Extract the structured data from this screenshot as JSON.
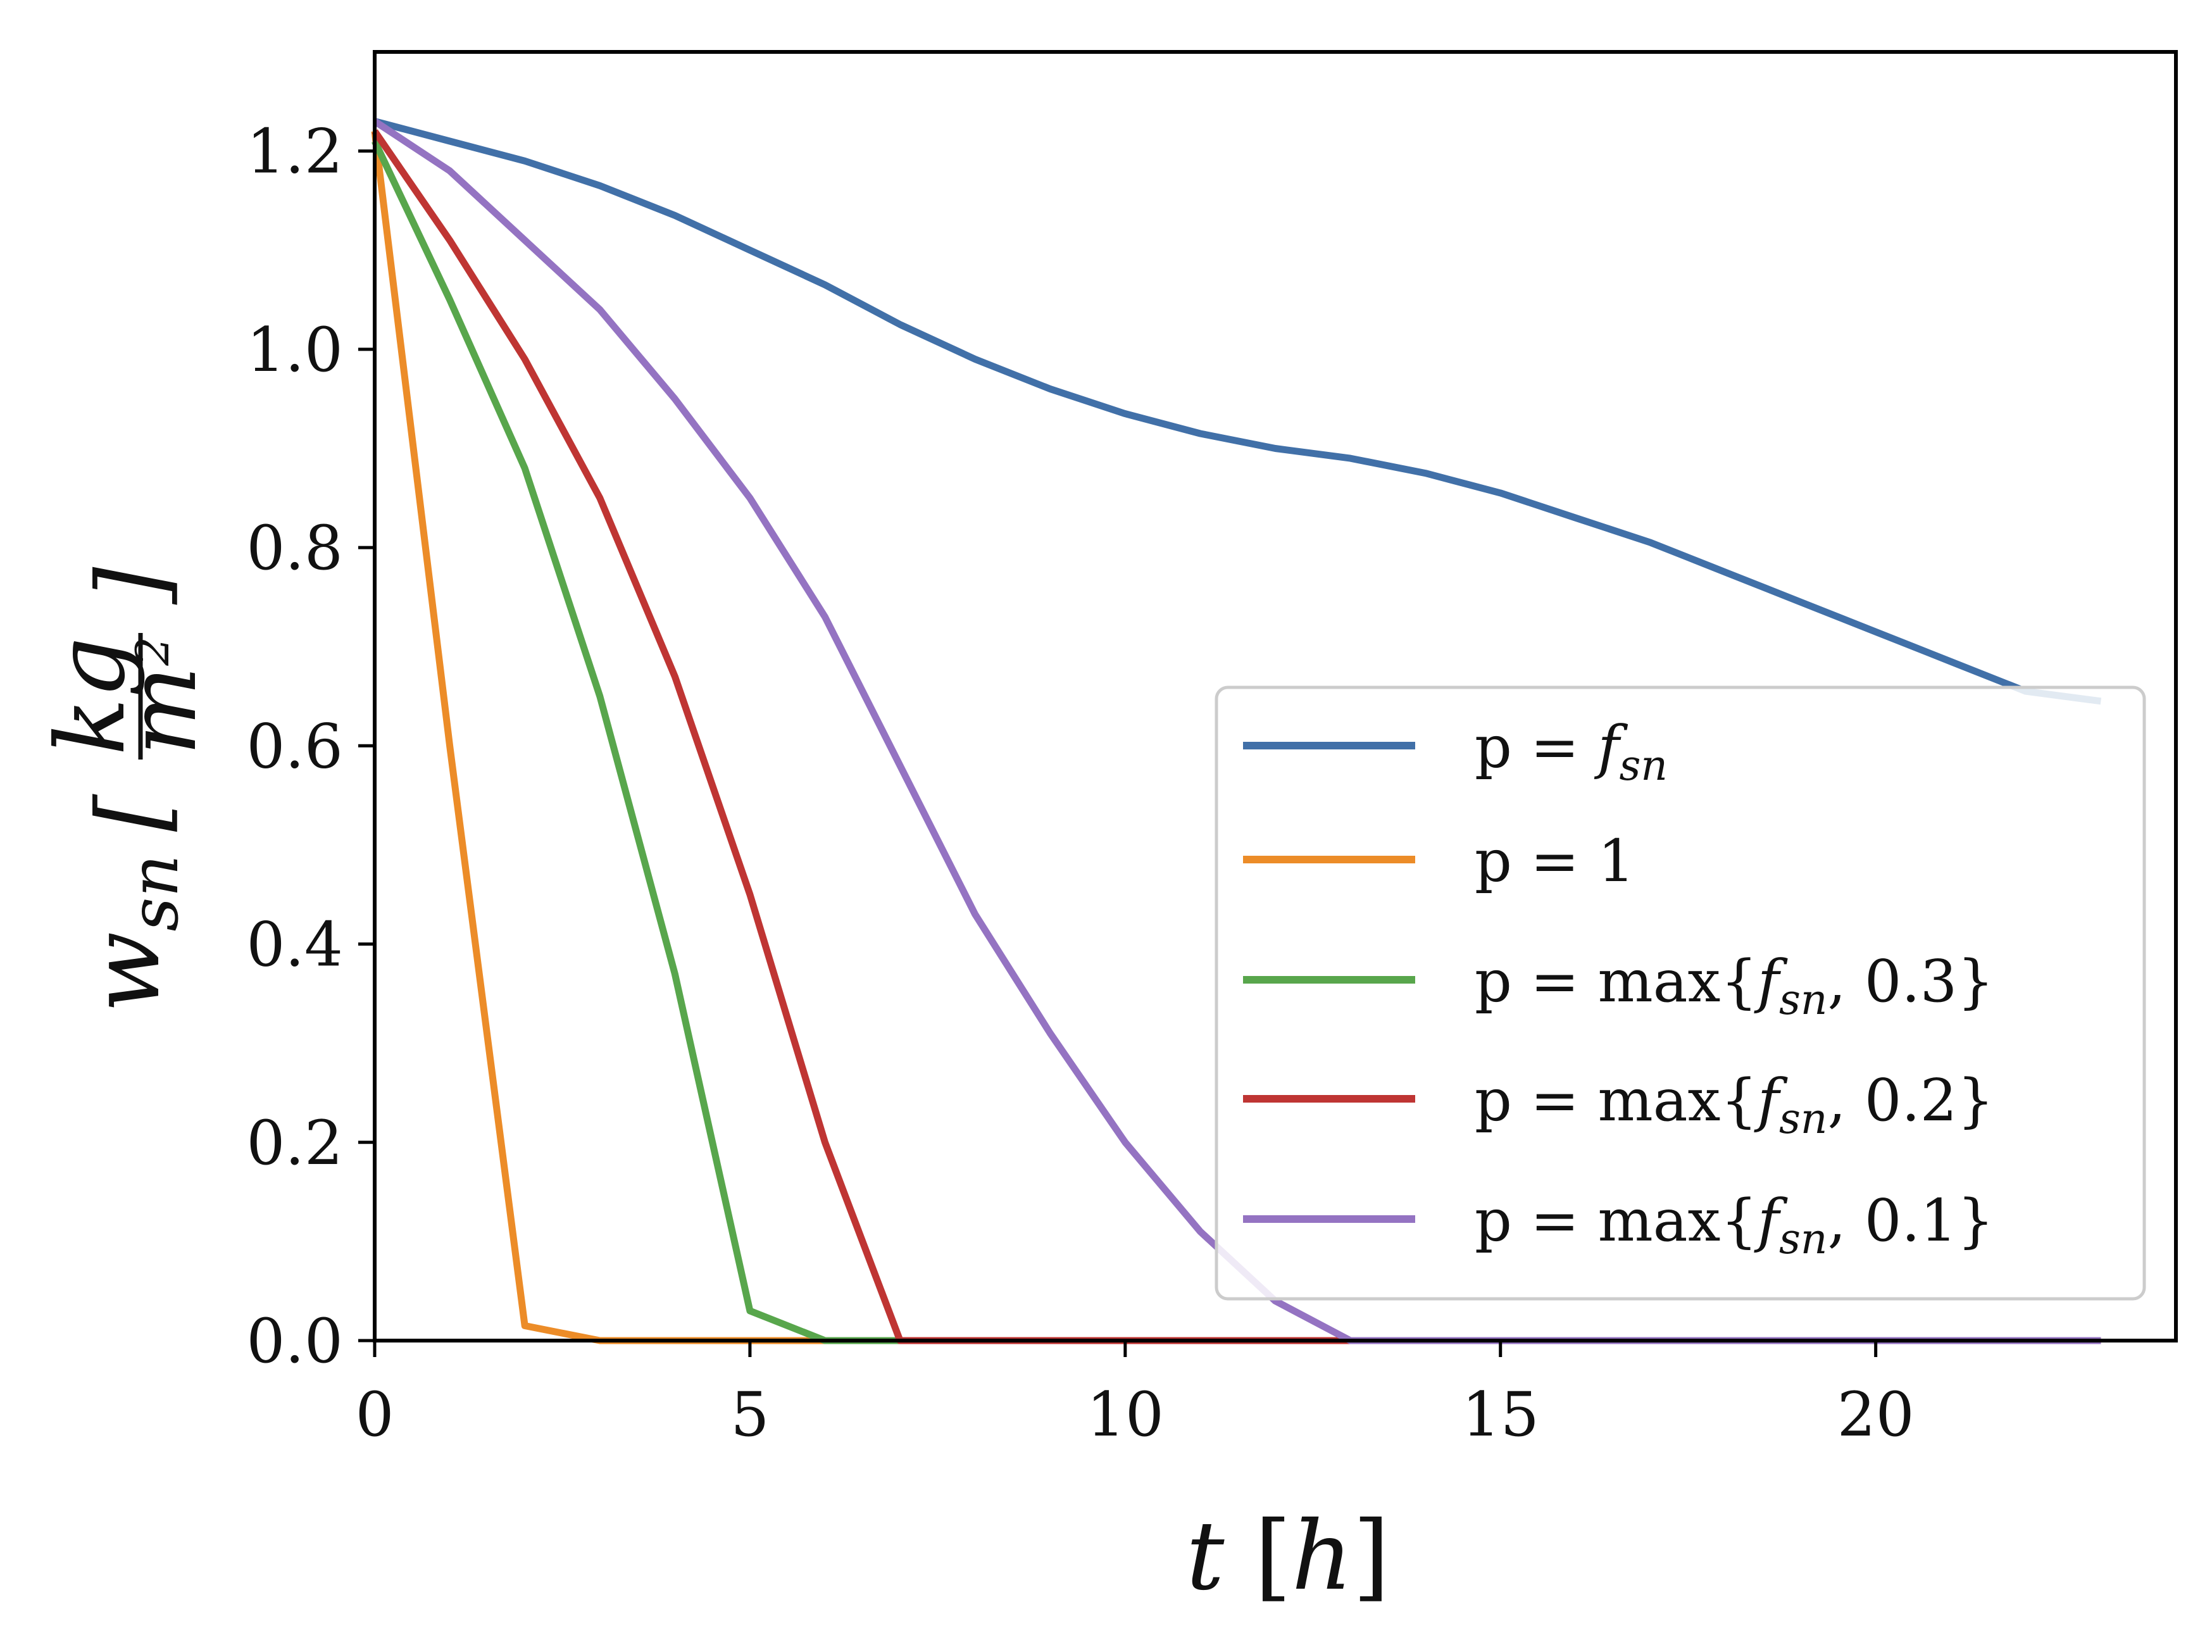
{
  "chart_data": {
    "type": "line",
    "title": "",
    "xlabel": "t [h]",
    "ylabel": "w_sn [kg/m^2]",
    "xlim": [
      0,
      24
    ],
    "ylim": [
      0.0,
      1.3
    ],
    "xticks": [
      "0",
      "5",
      "10",
      "15",
      "20"
    ],
    "yticks": [
      "0.0",
      "0.2",
      "0.4",
      "0.6",
      "0.8",
      "1.0",
      "1.2"
    ],
    "grid": false,
    "legend_position": "lower-right",
    "x": [
      0,
      1,
      2,
      3,
      4,
      5,
      6,
      7,
      8,
      9,
      10,
      11,
      12,
      13,
      14,
      15,
      16,
      17,
      18,
      19,
      20,
      21,
      22,
      23
    ],
    "series": [
      {
        "name": "p = f_sn",
        "color": "#4170a8",
        "values": [
          1.23,
          1.21,
          1.19,
          1.165,
          1.135,
          1.1,
          1.065,
          1.025,
          0.99,
          0.96,
          0.935,
          0.915,
          0.9,
          0.89,
          0.875,
          0.855,
          0.83,
          0.805,
          0.775,
          0.745,
          0.715,
          0.685,
          0.655,
          0.645
        ]
      },
      {
        "name": "p = 1",
        "color": "#ec8c28",
        "values": [
          1.22,
          0.6,
          0.015,
          0,
          0,
          0,
          0,
          0,
          0,
          0,
          0,
          0,
          0,
          0,
          0,
          0,
          0,
          0,
          0,
          0,
          0,
          0,
          0,
          0
        ]
      },
      {
        "name": "p = max{f_sn, 0.3}",
        "color": "#58a64c",
        "values": [
          1.21,
          1.05,
          0.88,
          0.65,
          0.37,
          0.03,
          0,
          0,
          0,
          0,
          0,
          0,
          0,
          0,
          0,
          0,
          0,
          0,
          0,
          0,
          0,
          0,
          0,
          0
        ]
      },
      {
        "name": "p = max{f_sn, 0.2}",
        "color": "#bf3533",
        "values": [
          1.22,
          1.11,
          0.99,
          0.85,
          0.67,
          0.45,
          0.2,
          0,
          0,
          0,
          0,
          0,
          0,
          0,
          0,
          0,
          0,
          0,
          0,
          0,
          0,
          0,
          0,
          0
        ]
      },
      {
        "name": "p = max{f_sn, 0.1}",
        "color": "#9473c2",
        "values": [
          1.23,
          1.18,
          1.11,
          1.04,
          0.95,
          0.85,
          0.73,
          0.58,
          0.43,
          0.31,
          0.2,
          0.11,
          0.04,
          0,
          0,
          0,
          0,
          0,
          0,
          0,
          0,
          0,
          0,
          0
        ]
      }
    ],
    "legend_entries": [
      {
        "prefix": "p = ",
        "body": "f",
        "sub": "sn",
        "suffix": ""
      },
      {
        "prefix": "p = 1",
        "body": "",
        "sub": "",
        "suffix": ""
      },
      {
        "prefix": "p = max{",
        "body": "f",
        "sub": "sn",
        "suffix": ", 0.3}"
      },
      {
        "prefix": "p = max{",
        "body": "f",
        "sub": "sn",
        "suffix": ", 0.2}"
      },
      {
        "prefix": "p = max{",
        "body": "f",
        "sub": "sn",
        "suffix": ", 0.1}"
      }
    ],
    "ylabel_parts": {
      "main": "w",
      "sub": "sn",
      "unit_num": "kg",
      "unit_den": "m",
      "unit_den_sup": "2"
    },
    "xlabel_parts": {
      "main": "t",
      "unit": "h"
    }
  }
}
